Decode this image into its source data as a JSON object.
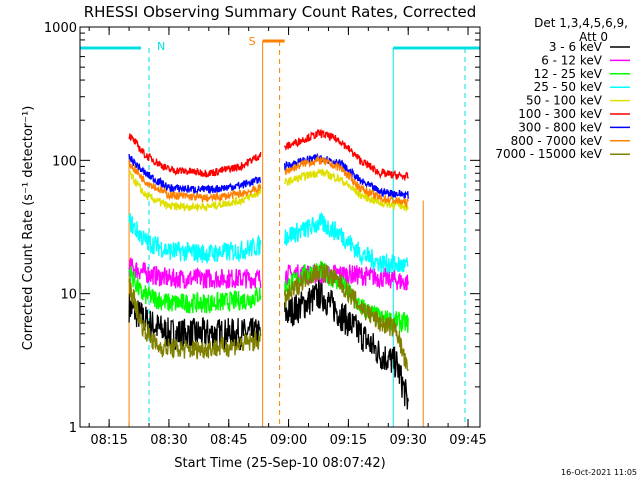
{
  "chart_data": {
    "type": "line",
    "title": "RHESSI Observing Summary Count Rates, Corrected",
    "xlabel": "Start Time (25-Sep-10 08:07:42)",
    "ylabel": "Corrected Count Rate (s⁻¹ detector⁻¹)",
    "yscale": "log",
    "xlim": [
      "08:07:42",
      "09:48:00"
    ],
    "ylim": [
      1,
      1000
    ],
    "x_ticks": [
      "08:15",
      "08:30",
      "08:45",
      "09:00",
      "09:15",
      "09:30",
      "09:45"
    ],
    "y_ticks": [
      "1",
      "10",
      "100",
      "1000"
    ],
    "grid": false,
    "legend_position": "top-right",
    "legend_header": [
      "Det 1,3,4,5,6,9,",
      "Att 0"
    ],
    "timestamp": "16-Oct-2021 11:05",
    "annotations": [
      {
        "label": "N",
        "color": "#00e0e0",
        "at": "08:25"
      },
      {
        "label": "S",
        "color": "#ff8000",
        "at": "08:53"
      }
    ],
    "segments": [
      [
        "08:20",
        "08:53"
      ],
      [
        "08:59",
        "09:30"
      ]
    ],
    "series": [
      {
        "name": "3 - 6 keV",
        "color": "#000000",
        "seg1": [
          [
            "08:20",
            8
          ],
          [
            "08:25",
            6
          ],
          [
            "08:30",
            5
          ],
          [
            "08:40",
            5
          ],
          [
            "08:50",
            5
          ],
          [
            "08:53",
            5
          ]
        ],
        "seg2": [
          [
            "08:59",
            7
          ],
          [
            "09:03",
            8
          ],
          [
            "09:08",
            10
          ],
          [
            "09:13",
            7
          ],
          [
            "09:18",
            5
          ],
          [
            "09:23",
            3.5
          ],
          [
            "09:27",
            3
          ],
          [
            "09:30",
            1.5
          ]
        ]
      },
      {
        "name": "6 - 12 keV",
        "color": "#ff00ff",
        "seg1": [
          [
            "08:20",
            16
          ],
          [
            "08:25",
            14
          ],
          [
            "08:30",
            13
          ],
          [
            "08:40",
            13
          ],
          [
            "08:50",
            13
          ],
          [
            "08:53",
            13
          ]
        ],
        "seg2": [
          [
            "08:59",
            14
          ],
          [
            "09:05",
            14
          ],
          [
            "09:15",
            14
          ],
          [
            "09:25",
            13
          ],
          [
            "09:30",
            12
          ]
        ]
      },
      {
        "name": "12 - 25 keV",
        "color": "#00ff00",
        "seg1": [
          [
            "08:20",
            15
          ],
          [
            "08:23",
            10
          ],
          [
            "08:30",
            8.5
          ],
          [
            "08:40",
            8.5
          ],
          [
            "08:50",
            9
          ],
          [
            "08:53",
            10
          ]
        ],
        "seg2": [
          [
            "08:59",
            11
          ],
          [
            "09:04",
            14
          ],
          [
            "09:08",
            15
          ],
          [
            "09:13",
            12
          ],
          [
            "09:18",
            8
          ],
          [
            "09:23",
            6.5
          ],
          [
            "09:30",
            6
          ]
        ]
      },
      {
        "name": "25 - 50 keV",
        "color": "#00ffff",
        "seg1": [
          [
            "08:20",
            35
          ],
          [
            "08:24",
            25
          ],
          [
            "08:30",
            21
          ],
          [
            "08:40",
            20
          ],
          [
            "08:48",
            21
          ],
          [
            "08:53",
            23
          ]
        ],
        "seg2": [
          [
            "08:59",
            27
          ],
          [
            "09:04",
            30
          ],
          [
            "09:08",
            34
          ],
          [
            "09:13",
            28
          ],
          [
            "09:18",
            20
          ],
          [
            "09:23",
            17
          ],
          [
            "09:30",
            16
          ]
        ]
      },
      {
        "name": "50 - 100 keV",
        "color": "#e0e000",
        "seg1": [
          [
            "08:20",
            80
          ],
          [
            "08:24",
            55
          ],
          [
            "08:30",
            45
          ],
          [
            "08:40",
            45
          ],
          [
            "08:48",
            50
          ],
          [
            "08:53",
            58
          ]
        ],
        "seg2": [
          [
            "08:59",
            68
          ],
          [
            "09:04",
            76
          ],
          [
            "09:08",
            82
          ],
          [
            "09:13",
            72
          ],
          [
            "09:18",
            55
          ],
          [
            "09:23",
            48
          ],
          [
            "09:30",
            45
          ]
        ]
      },
      {
        "name": "100 - 300 keV",
        "color": "#ff0000",
        "seg1": [
          [
            "08:20",
            155
          ],
          [
            "08:24",
            110
          ],
          [
            "08:30",
            85
          ],
          [
            "08:40",
            80
          ],
          [
            "08:48",
            90
          ],
          [
            "08:53",
            110
          ]
        ],
        "seg2": [
          [
            "08:59",
            125
          ],
          [
            "09:04",
            145
          ],
          [
            "09:08",
            160
          ],
          [
            "09:13",
            140
          ],
          [
            "09:18",
            100
          ],
          [
            "09:23",
            80
          ],
          [
            "09:30",
            75
          ]
        ]
      },
      {
        "name": "300 - 800 keV",
        "color": "#0000ff",
        "seg1": [
          [
            "08:20",
            105
          ],
          [
            "08:24",
            80
          ],
          [
            "08:30",
            62
          ],
          [
            "08:40",
            60
          ],
          [
            "08:48",
            65
          ],
          [
            "08:53",
            72
          ]
        ],
        "seg2": [
          [
            "08:59",
            90
          ],
          [
            "09:04",
            100
          ],
          [
            "09:08",
            105
          ],
          [
            "09:13",
            95
          ],
          [
            "09:18",
            70
          ],
          [
            "09:23",
            58
          ],
          [
            "09:30",
            55
          ]
        ]
      },
      {
        "name": "800 - 7000 keV",
        "color": "#ff8000",
        "seg1": [
          [
            "08:20",
            95
          ],
          [
            "08:24",
            70
          ],
          [
            "08:30",
            55
          ],
          [
            "08:40",
            52
          ],
          [
            "08:48",
            56
          ],
          [
            "08:53",
            62
          ]
        ],
        "seg2": [
          [
            "08:59",
            82
          ],
          [
            "09:04",
            95
          ],
          [
            "09:08",
            100
          ],
          [
            "09:13",
            88
          ],
          [
            "09:18",
            62
          ],
          [
            "09:23",
            52
          ],
          [
            "09:30",
            48
          ]
        ]
      },
      {
        "name": "7000 - 15000 keV",
        "color": "#808000",
        "seg1": [
          [
            "08:20",
            12
          ],
          [
            "08:23",
            6
          ],
          [
            "08:27",
            4
          ],
          [
            "08:35",
            3.8
          ],
          [
            "08:45",
            4
          ],
          [
            "08:53",
            4.5
          ]
        ],
        "seg2": [
          [
            "08:59",
            9
          ],
          [
            "09:04",
            13
          ],
          [
            "09:08",
            15
          ],
          [
            "09:13",
            12
          ],
          [
            "09:18",
            8
          ],
          [
            "09:23",
            6
          ],
          [
            "09:27",
            5.5
          ],
          [
            "09:30",
            2.5
          ]
        ]
      }
    ]
  }
}
